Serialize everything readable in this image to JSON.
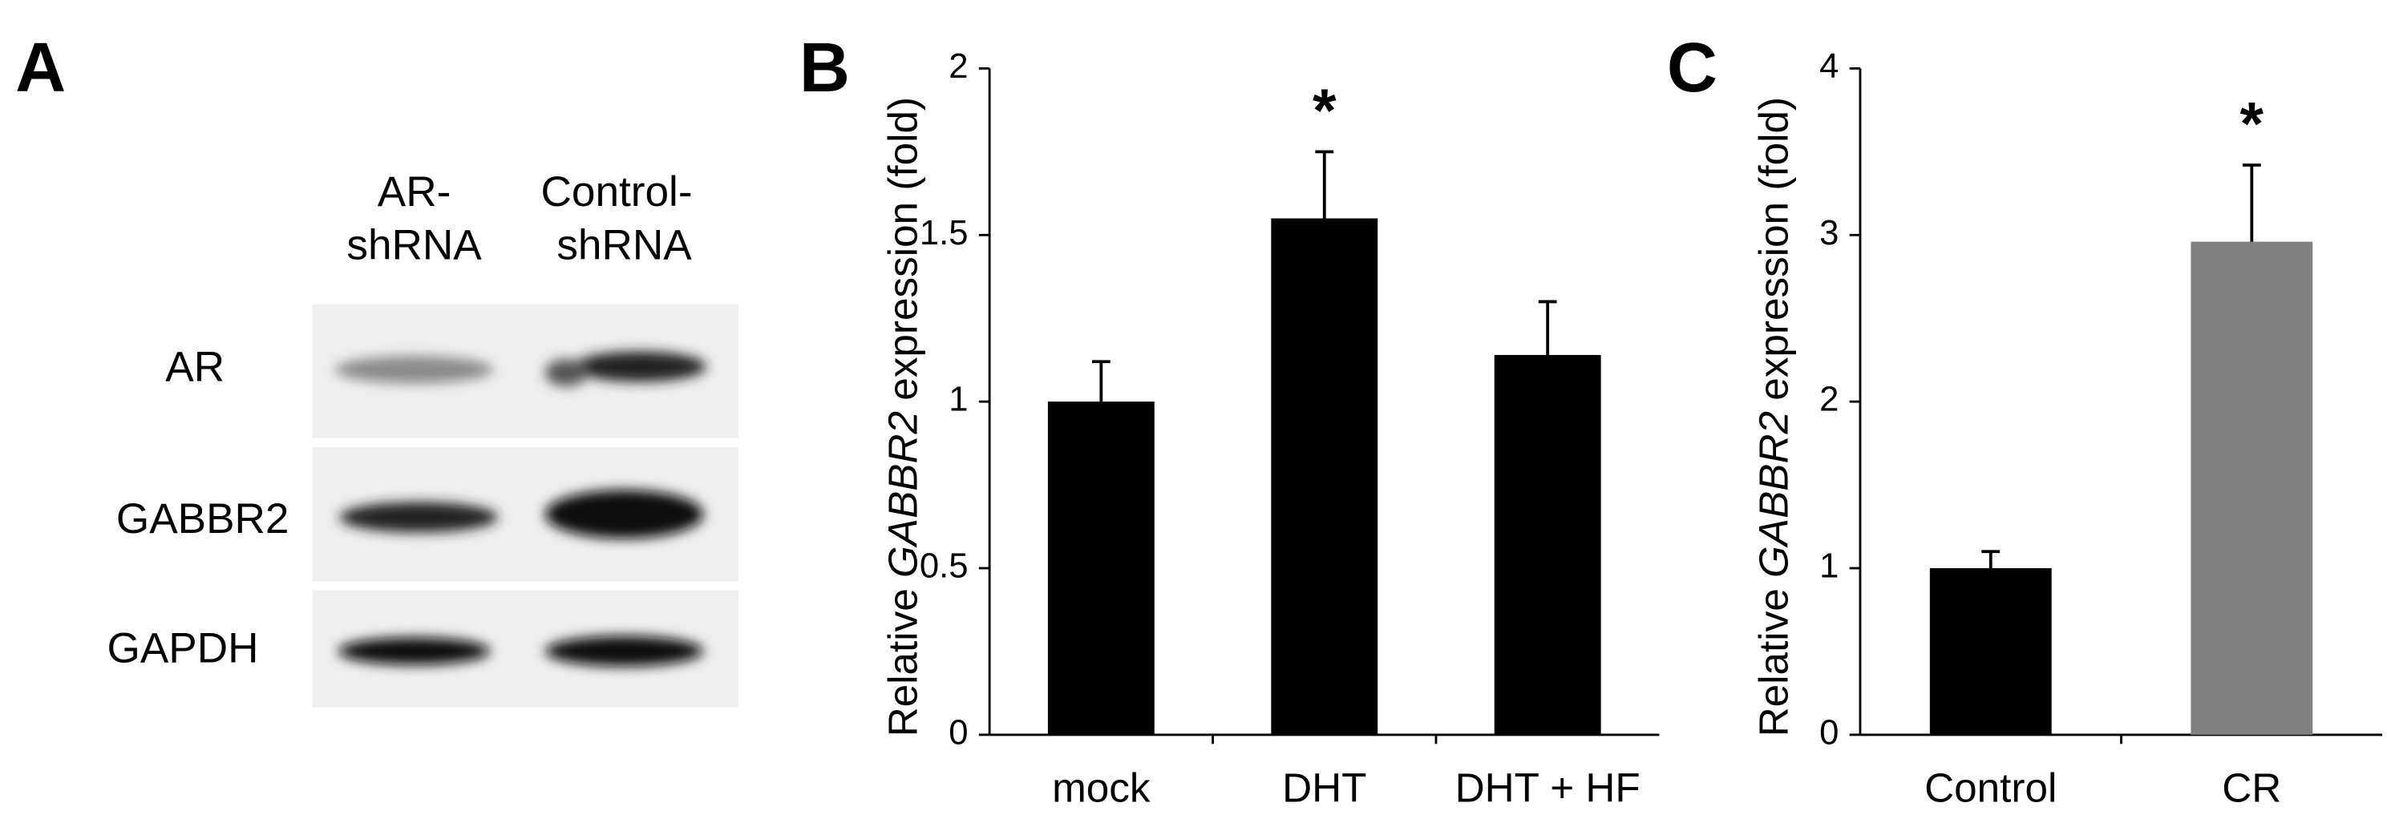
{
  "panel_a": {
    "label": "A",
    "lanes": [
      [
        "AR-",
        "shRNA"
      ],
      [
        "Control-",
        "shRNA"
      ]
    ],
    "rows": [
      "AR",
      "GABBR2",
      "GAPDH"
    ]
  },
  "chart_data": [
    {
      "type": "bar",
      "panel_label": "B",
      "ylabel": {
        "before": "Relative",
        "italic": "GABBR2",
        "after": "expression (fold)"
      },
      "categories": [
        "mock",
        "DHT",
        "DHT + HF"
      ],
      "values": [
        1.0,
        1.55,
        1.14
      ],
      "errors": [
        0.12,
        0.2,
        0.16
      ],
      "significance": [
        null,
        "*",
        null
      ],
      "colors": [
        "#000000",
        "#000000",
        "#000000"
      ],
      "ylim": [
        0,
        2
      ],
      "yticks": [
        0,
        0.5,
        1,
        1.5,
        2
      ]
    },
    {
      "type": "bar",
      "panel_label": "C",
      "ylabel": {
        "before": "Relative",
        "italic": "GABBR2",
        "after": "expression (fold)"
      },
      "categories": [
        "Control",
        "CR"
      ],
      "values": [
        1.0,
        2.96
      ],
      "errors": [
        0.1,
        0.46
      ],
      "significance": [
        null,
        "*"
      ],
      "colors": [
        "#000000",
        "#808080"
      ],
      "ylim": [
        0,
        4
      ],
      "yticks": [
        0,
        1,
        2,
        3,
        4
      ]
    }
  ]
}
